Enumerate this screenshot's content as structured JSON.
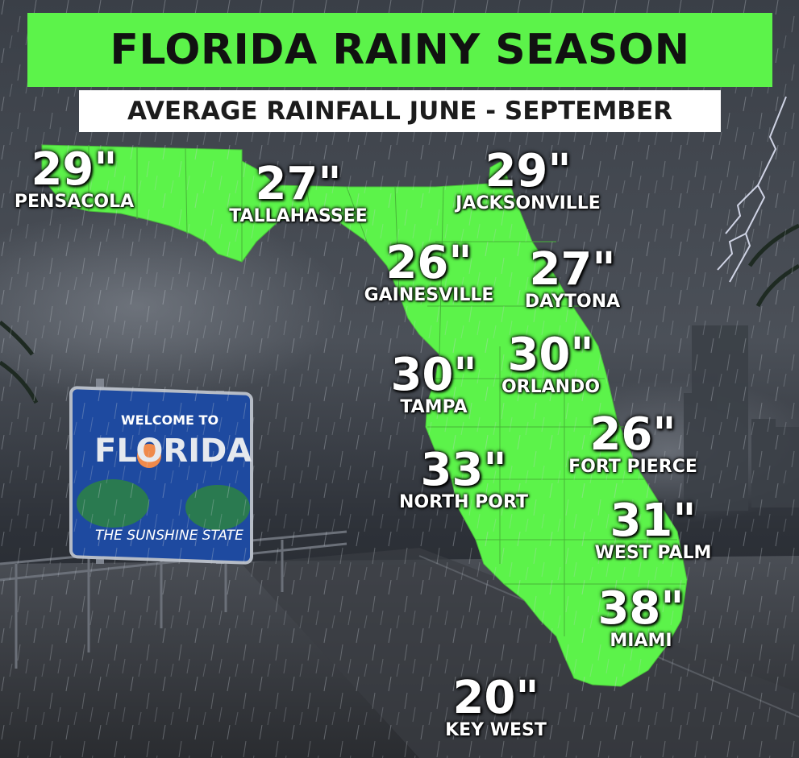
{
  "header": {
    "title": "FLORIDA RAINY SEASON",
    "subtitle": "AVERAGE RAINFALL JUNE - SEPTEMBER"
  },
  "colors": {
    "map_fill": "#5cf34a",
    "title_bar": "#5cf34a",
    "subtitle_bar": "#ffffff",
    "label_text": "#ffffff",
    "sign_background": "#1e4aa0"
  },
  "cities": [
    {
      "id": "pensacola",
      "name": "PENSACOLA",
      "rainfall": "29\"",
      "inches": 29
    },
    {
      "id": "tallahassee",
      "name": "TALLAHASSEE",
      "rainfall": "27\"",
      "inches": 27
    },
    {
      "id": "jacksonville",
      "name": "JACKSONVILLE",
      "rainfall": "29\"",
      "inches": 29
    },
    {
      "id": "gainesville",
      "name": "GAINESVILLE",
      "rainfall": "26\"",
      "inches": 26
    },
    {
      "id": "daytona",
      "name": "DAYTONA",
      "rainfall": "27\"",
      "inches": 27
    },
    {
      "id": "tampa",
      "name": "TAMPA",
      "rainfall": "30\"",
      "inches": 30
    },
    {
      "id": "orlando",
      "name": "ORLANDO",
      "rainfall": "30\"",
      "inches": 30
    },
    {
      "id": "fort-pierce",
      "name": "FORT PIERCE",
      "rainfall": "26\"",
      "inches": 26
    },
    {
      "id": "north-port",
      "name": "NORTH PORT",
      "rainfall": "33\"",
      "inches": 33
    },
    {
      "id": "west-palm",
      "name": "WEST PALM",
      "rainfall": "31\"",
      "inches": 31
    },
    {
      "id": "miami",
      "name": "MIAMI",
      "rainfall": "38\"",
      "inches": 38
    },
    {
      "id": "key-west",
      "name": "KEY WEST",
      "rainfall": "20\"",
      "inches": 20
    }
  ],
  "sign": {
    "line1": "WELCOME TO",
    "line2": "FLORIDA",
    "line3": "THE SUNSHINE STATE"
  }
}
